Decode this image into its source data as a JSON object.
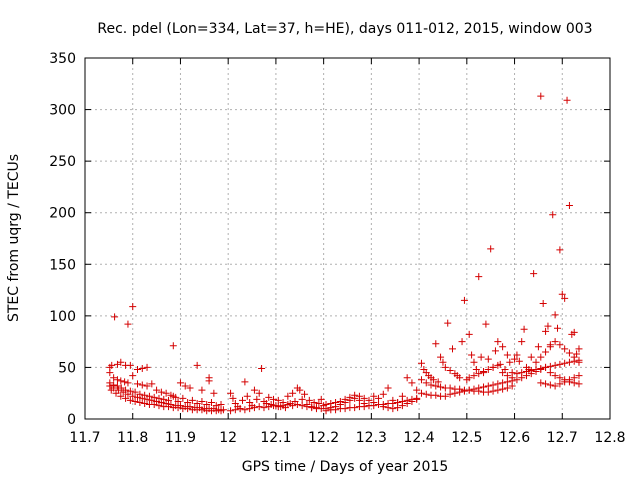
{
  "chart_data": {
    "type": "scatter",
    "title": "Rec. pdel (Lon=334, Lat=37, h=HE), days 011-012, 2015, window 003",
    "xlabel": "GPS time / Days of year 2015",
    "ylabel": "STEC from uqrg / TECUs",
    "xlim": [
      11.7,
      12.8
    ],
    "ylim": [
      0,
      350
    ],
    "xticks": [
      "11.7",
      "11.8",
      "11.9",
      "12",
      "12.1",
      "12.2",
      "12.3",
      "12.4",
      "12.5",
      "12.6",
      "12.7",
      "12.8"
    ],
    "yticks": [
      "0",
      "50",
      "100",
      "150",
      "200",
      "250",
      "300",
      "350"
    ],
    "grid": true,
    "marker": "+",
    "color": "#d40000",
    "points": [
      [
        11.752,
        50
      ],
      [
        11.756,
        52
      ],
      [
        11.762,
        99
      ],
      [
        11.768,
        53
      ],
      [
        11.775,
        55
      ],
      [
        11.785,
        52
      ],
      [
        11.79,
        92
      ],
      [
        11.795,
        52
      ],
      [
        11.8,
        109
      ],
      [
        11.81,
        48
      ],
      [
        11.82,
        49
      ],
      [
        11.83,
        50
      ],
      [
        11.752,
        45
      ],
      [
        11.76,
        40
      ],
      [
        11.768,
        38
      ],
      [
        11.775,
        37
      ],
      [
        11.783,
        36
      ],
      [
        11.79,
        35
      ],
      [
        11.8,
        42
      ],
      [
        11.81,
        34
      ],
      [
        11.82,
        33
      ],
      [
        11.83,
        32
      ],
      [
        11.84,
        34
      ],
      [
        11.85,
        28
      ],
      [
        11.86,
        26
      ],
      [
        11.87,
        25
      ],
      [
        11.88,
        23
      ],
      [
        11.89,
        21
      ],
      [
        11.9,
        35
      ],
      [
        11.91,
        32
      ],
      [
        11.92,
        30
      ],
      [
        11.935,
        52
      ],
      [
        11.945,
        28
      ],
      [
        11.96,
        37
      ],
      [
        11.97,
        25
      ],
      [
        11.752,
        35
      ],
      [
        11.76,
        33
      ],
      [
        11.768,
        32
      ],
      [
        11.776,
        30
      ],
      [
        11.785,
        28
      ],
      [
        11.795,
        27
      ],
      [
        11.805,
        26
      ],
      [
        11.815,
        24
      ],
      [
        11.825,
        23
      ],
      [
        11.835,
        22
      ],
      [
        11.845,
        21
      ],
      [
        11.855,
        20
      ],
      [
        11.865,
        19
      ],
      [
        11.875,
        18
      ],
      [
        11.885,
        22
      ],
      [
        11.895,
        17
      ],
      [
        11.905,
        20
      ],
      [
        11.915,
        16
      ],
      [
        11.925,
        18
      ],
      [
        11.935,
        15
      ],
      [
        11.945,
        17
      ],
      [
        11.955,
        14
      ],
      [
        11.965,
        16
      ],
      [
        11.975,
        13
      ],
      [
        11.985,
        14
      ],
      [
        11.752,
        32
      ],
      [
        11.76,
        30
      ],
      [
        11.77,
        28
      ],
      [
        11.78,
        26
      ],
      [
        11.79,
        24
      ],
      [
        11.8,
        22
      ],
      [
        11.81,
        21
      ],
      [
        11.82,
        20
      ],
      [
        11.83,
        19
      ],
      [
        11.84,
        18
      ],
      [
        11.85,
        17
      ],
      [
        11.86,
        16
      ],
      [
        11.87,
        15
      ],
      [
        11.88,
        14
      ],
      [
        11.89,
        13
      ],
      [
        11.9,
        13
      ],
      [
        11.91,
        12
      ],
      [
        11.92,
        12
      ],
      [
        11.93,
        11
      ],
      [
        11.94,
        11
      ],
      [
        11.95,
        10
      ],
      [
        11.96,
        10
      ],
      [
        11.97,
        10
      ],
      [
        11.98,
        9
      ],
      [
        11.99,
        9
      ],
      [
        11.755,
        28
      ],
      [
        11.765,
        25
      ],
      [
        11.775,
        22
      ],
      [
        11.785,
        20
      ],
      [
        11.795,
        18
      ],
      [
        11.805,
        17
      ],
      [
        11.815,
        16
      ],
      [
        11.825,
        15
      ],
      [
        11.835,
        14
      ],
      [
        11.845,
        14
      ],
      [
        11.855,
        13
      ],
      [
        11.865,
        12
      ],
      [
        11.875,
        12
      ],
      [
        11.885,
        11
      ],
      [
        11.895,
        11
      ],
      [
        11.905,
        10
      ],
      [
        11.915,
        10
      ],
      [
        11.925,
        9
      ],
      [
        11.935,
        9
      ],
      [
        11.945,
        9
      ],
      [
        11.955,
        8
      ],
      [
        11.965,
        8
      ],
      [
        11.975,
        8
      ],
      [
        11.985,
        8
      ],
      [
        11.885,
        71
      ],
      [
        11.96,
        40
      ],
      [
        12.005,
        25
      ],
      [
        12.01,
        20
      ],
      [
        12.015,
        15
      ],
      [
        12.02,
        12
      ],
      [
        12.025,
        10
      ],
      [
        12.03,
        18
      ],
      [
        12.035,
        36
      ],
      [
        12.04,
        22
      ],
      [
        12.045,
        16
      ],
      [
        12.05,
        13
      ],
      [
        12.055,
        28
      ],
      [
        12.06,
        19
      ],
      [
        12.065,
        25
      ],
      [
        12.07,
        49
      ],
      [
        12.075,
        17
      ],
      [
        12.08,
        15
      ],
      [
        12.085,
        21
      ],
      [
        12.09,
        14
      ],
      [
        12.095,
        19
      ],
      [
        12.1,
        13
      ],
      [
        12.105,
        18
      ],
      [
        12.11,
        12
      ],
      [
        12.115,
        16
      ],
      [
        12.12,
        11
      ],
      [
        12.125,
        22
      ],
      [
        12.13,
        15
      ],
      [
        12.135,
        25
      ],
      [
        12.14,
        17
      ],
      [
        12.145,
        30
      ],
      [
        12.15,
        28
      ],
      [
        12.155,
        19
      ],
      [
        12.16,
        24
      ],
      [
        12.165,
        14
      ],
      [
        12.17,
        18
      ],
      [
        12.175,
        12
      ],
      [
        12.18,
        16
      ],
      [
        12.185,
        11
      ],
      [
        12.19,
        15
      ],
      [
        12.195,
        19
      ],
      [
        12.2,
        13
      ],
      [
        12.005,
        8
      ],
      [
        12.015,
        9
      ],
      [
        12.025,
        10
      ],
      [
        12.035,
        9
      ],
      [
        12.045,
        10
      ],
      [
        12.055,
        11
      ],
      [
        12.065,
        12
      ],
      [
        12.075,
        11
      ],
      [
        12.085,
        12
      ],
      [
        12.095,
        13
      ],
      [
        12.105,
        12
      ],
      [
        12.115,
        13
      ],
      [
        12.125,
        14
      ],
      [
        12.135,
        13
      ],
      [
        12.145,
        14
      ],
      [
        12.155,
        13
      ],
      [
        12.165,
        12
      ],
      [
        12.175,
        11
      ],
      [
        12.185,
        10
      ],
      [
        12.195,
        10
      ],
      [
        12.205,
        10
      ],
      [
        12.215,
        11
      ],
      [
        12.225,
        12
      ],
      [
        12.235,
        14
      ],
      [
        12.245,
        16
      ],
      [
        12.255,
        18
      ],
      [
        12.265,
        20
      ],
      [
        12.275,
        22
      ],
      [
        12.285,
        20
      ],
      [
        12.295,
        18
      ],
      [
        12.305,
        16
      ],
      [
        12.315,
        14
      ],
      [
        12.325,
        12
      ],
      [
        12.335,
        11
      ],
      [
        12.345,
        10
      ],
      [
        12.355,
        11
      ],
      [
        12.365,
        13
      ],
      [
        12.375,
        15
      ],
      [
        12.385,
        17
      ],
      [
        12.395,
        19
      ],
      [
        12.205,
        14
      ],
      [
        12.215,
        15
      ],
      [
        12.225,
        16
      ],
      [
        12.235,
        17
      ],
      [
        12.245,
        19
      ],
      [
        12.255,
        21
      ],
      [
        12.265,
        23
      ],
      [
        12.275,
        18
      ],
      [
        12.285,
        15
      ],
      [
        12.295,
        13
      ],
      [
        12.305,
        22
      ],
      [
        12.315,
        20
      ],
      [
        12.325,
        24
      ],
      [
        12.335,
        30
      ],
      [
        12.345,
        18
      ],
      [
        12.355,
        16
      ],
      [
        12.365,
        22
      ],
      [
        12.375,
        40
      ],
      [
        12.385,
        35
      ],
      [
        12.395,
        28
      ],
      [
        12.205,
        8
      ],
      [
        12.215,
        9
      ],
      [
        12.225,
        9
      ],
      [
        12.235,
        10
      ],
      [
        12.245,
        10
      ],
      [
        12.255,
        11
      ],
      [
        12.265,
        11
      ],
      [
        12.275,
        12
      ],
      [
        12.285,
        12
      ],
      [
        12.295,
        13
      ],
      [
        12.305,
        13
      ],
      [
        12.315,
        14
      ],
      [
        12.325,
        14
      ],
      [
        12.335,
        15
      ],
      [
        12.345,
        15
      ],
      [
        12.355,
        16
      ],
      [
        12.365,
        17
      ],
      [
        12.375,
        18
      ],
      [
        12.385,
        19
      ],
      [
        12.395,
        20
      ],
      [
        12.405,
        54
      ],
      [
        12.41,
        48
      ],
      [
        12.415,
        45
      ],
      [
        12.42,
        42
      ],
      [
        12.425,
        40
      ],
      [
        12.43,
        38
      ],
      [
        12.435,
        73
      ],
      [
        12.44,
        36
      ],
      [
        12.445,
        60
      ],
      [
        12.45,
        55
      ],
      [
        12.455,
        50
      ],
      [
        12.46,
        93
      ],
      [
        12.465,
        47
      ],
      [
        12.47,
        68
      ],
      [
        12.475,
        44
      ],
      [
        12.48,
        42
      ],
      [
        12.485,
        40
      ],
      [
        12.49,
        75
      ],
      [
        12.495,
        115
      ],
      [
        12.5,
        38
      ],
      [
        12.405,
        38
      ],
      [
        12.415,
        35
      ],
      [
        12.425,
        33
      ],
      [
        12.435,
        32
      ],
      [
        12.445,
        31
      ],
      [
        12.455,
        30
      ],
      [
        12.465,
        30
      ],
      [
        12.475,
        29
      ],
      [
        12.485,
        29
      ],
      [
        12.495,
        28
      ],
      [
        12.505,
        28
      ],
      [
        12.515,
        27
      ],
      [
        12.525,
        27
      ],
      [
        12.535,
        26
      ],
      [
        12.545,
        26
      ],
      [
        12.555,
        27
      ],
      [
        12.565,
        28
      ],
      [
        12.575,
        29
      ],
      [
        12.585,
        30
      ],
      [
        12.595,
        32
      ],
      [
        12.405,
        25
      ],
      [
        12.415,
        24
      ],
      [
        12.425,
        23
      ],
      [
        12.435,
        23
      ],
      [
        12.445,
        22
      ],
      [
        12.455,
        22
      ],
      [
        12.465,
        24
      ],
      [
        12.475,
        25
      ],
      [
        12.485,
        26
      ],
      [
        12.495,
        27
      ],
      [
        12.505,
        28
      ],
      [
        12.515,
        29
      ],
      [
        12.525,
        30
      ],
      [
        12.535,
        31
      ],
      [
        12.545,
        32
      ],
      [
        12.555,
        33
      ],
      [
        12.565,
        34
      ],
      [
        12.575,
        35
      ],
      [
        12.585,
        36
      ],
      [
        12.595,
        37
      ],
      [
        12.505,
        82
      ],
      [
        12.51,
        62
      ],
      [
        12.515,
        55
      ],
      [
        12.52,
        48
      ],
      [
        12.525,
        138
      ],
      [
        12.53,
        60
      ],
      [
        12.535,
        45
      ],
      [
        12.54,
        92
      ],
      [
        12.545,
        58
      ],
      [
        12.55,
        165
      ],
      [
        12.555,
        50
      ],
      [
        12.56,
        66
      ],
      [
        12.565,
        75
      ],
      [
        12.57,
        53
      ],
      [
        12.575,
        70
      ],
      [
        12.58,
        48
      ],
      [
        12.585,
        62
      ],
      [
        12.59,
        55
      ],
      [
        12.595,
        45
      ],
      [
        12.6,
        58
      ],
      [
        12.505,
        40
      ],
      [
        12.515,
        42
      ],
      [
        12.525,
        44
      ],
      [
        12.535,
        46
      ],
      [
        12.545,
        48
      ],
      [
        12.555,
        50
      ],
      [
        12.565,
        52
      ],
      [
        12.575,
        45
      ],
      [
        12.585,
        42
      ],
      [
        12.595,
        40
      ],
      [
        12.605,
        62
      ],
      [
        12.61,
        56
      ],
      [
        12.615,
        75
      ],
      [
        12.62,
        87
      ],
      [
        12.625,
        50
      ],
      [
        12.63,
        48
      ],
      [
        12.635,
        60
      ],
      [
        12.64,
        141
      ],
      [
        12.645,
        55
      ],
      [
        12.65,
        70
      ],
      [
        12.605,
        38
      ],
      [
        12.615,
        40
      ],
      [
        12.625,
        42
      ],
      [
        12.635,
        44
      ],
      [
        12.645,
        46
      ],
      [
        12.655,
        48
      ],
      [
        12.665,
        50
      ],
      [
        12.675,
        45
      ],
      [
        12.685,
        42
      ],
      [
        12.695,
        40
      ],
      [
        12.705,
        38
      ],
      [
        12.715,
        36
      ],
      [
        12.725,
        35
      ],
      [
        12.735,
        34
      ],
      [
        12.605,
        44
      ],
      [
        12.615,
        45
      ],
      [
        12.625,
        46
      ],
      [
        12.635,
        47
      ],
      [
        12.645,
        48
      ],
      [
        12.655,
        49
      ],
      [
        12.665,
        50
      ],
      [
        12.675,
        51
      ],
      [
        12.685,
        52
      ],
      [
        12.695,
        53
      ],
      [
        12.705,
        54
      ],
      [
        12.715,
        55
      ],
      [
        12.725,
        56
      ],
      [
        12.735,
        57
      ],
      [
        12.655,
        313
      ],
      [
        12.66,
        112
      ],
      [
        12.665,
        85
      ],
      [
        12.67,
        90
      ],
      [
        12.675,
        72
      ],
      [
        12.68,
        198
      ],
      [
        12.685,
        101
      ],
      [
        12.69,
        88
      ],
      [
        12.695,
        164
      ],
      [
        12.7,
        121
      ],
      [
        12.705,
        117
      ],
      [
        12.71,
        309
      ],
      [
        12.715,
        207
      ],
      [
        12.72,
        82
      ],
      [
        12.725,
        84
      ],
      [
        12.73,
        63
      ],
      [
        12.735,
        68
      ],
      [
        12.655,
        60
      ],
      [
        12.665,
        65
      ],
      [
        12.675,
        70
      ],
      [
        12.685,
        75
      ],
      [
        12.695,
        72
      ],
      [
        12.705,
        68
      ],
      [
        12.715,
        64
      ],
      [
        12.725,
        60
      ],
      [
        12.735,
        55
      ],
      [
        12.655,
        35
      ],
      [
        12.665,
        34
      ],
      [
        12.675,
        33
      ],
      [
        12.685,
        32
      ],
      [
        12.695,
        34
      ],
      [
        12.705,
        36
      ],
      [
        12.715,
        38
      ],
      [
        12.725,
        40
      ],
      [
        12.735,
        42
      ]
    ]
  }
}
